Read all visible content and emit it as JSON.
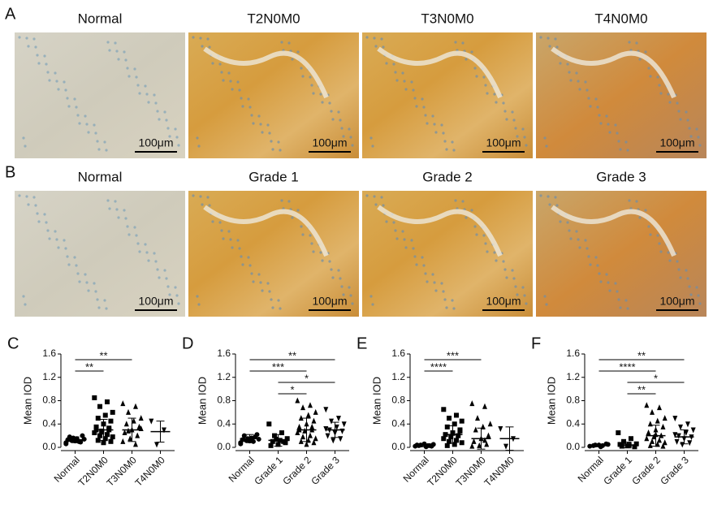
{
  "figure": {
    "rows": [
      {
        "label": "A",
        "panels": [
          {
            "title": "Normal",
            "scale_bar": "100μm"
          },
          {
            "title": "T2N0M0",
            "scale_bar": "100μm"
          },
          {
            "title": "T3N0M0",
            "scale_bar": "100μm"
          },
          {
            "title": "T4N0M0",
            "scale_bar": "100μm"
          }
        ]
      },
      {
        "label": "B",
        "panels": [
          {
            "title": "Normal",
            "scale_bar": "100μm"
          },
          {
            "title": "Grade 1",
            "scale_bar": "100μm"
          },
          {
            "title": "Grade 2",
            "scale_bar": "100μm"
          },
          {
            "title": "Grade 3",
            "scale_bar": "100μm"
          }
        ]
      }
    ]
  },
  "chart_data": [
    {
      "type": "dotplot",
      "panel_label": "C",
      "ylabel": "Mean IOD",
      "categories": [
        "Normal",
        "T2N0M0",
        "T3N0M0",
        "T4N0M0"
      ],
      "ylim": [
        0,
        1.6
      ],
      "yticks": [
        {
          "value": 0,
          "label": "0.0"
        },
        0.4,
        0.8,
        1.2,
        1.6
      ],
      "groups": [
        {
          "points": [
            0.08,
            0.1,
            0.12,
            0.14,
            0.15,
            0.18,
            0.2,
            0.11,
            0.13,
            0.09,
            0.16,
            0.06
          ],
          "mean": 0.13,
          "sd": 0.05
        },
        {
          "points": [
            0.85,
            0.78,
            0.7,
            0.6,
            0.55,
            0.5,
            0.45,
            0.4,
            0.35,
            0.3,
            0.28,
            0.25,
            0.22,
            0.2,
            0.18,
            0.15,
            0.12,
            0.1,
            0.08,
            0.3,
            0.33,
            0.26
          ],
          "mean": 0.3,
          "sd": 0.18
        },
        {
          "points": [
            0.75,
            0.7,
            0.6,
            0.5,
            0.45,
            0.4,
            0.35,
            0.3,
            0.25,
            0.2,
            0.15,
            0.1,
            0.05,
            0.28,
            0.32
          ],
          "mean": 0.3,
          "sd": 0.2
        },
        {
          "points": [
            0.45,
            0.3,
            0.05
          ],
          "mean": 0.27,
          "sd": 0.18
        }
      ],
      "comparisons": [
        {
          "from": "Normal",
          "to": "T3N0M0",
          "label": "**"
        },
        {
          "from": "Normal",
          "to": "T2N0M0",
          "label": "**"
        }
      ]
    },
    {
      "type": "dotplot",
      "panel_label": "D",
      "ylabel": "Mean IOD",
      "categories": [
        "Normal",
        "Grade 1",
        "Grade 2",
        "Grade 3"
      ],
      "ylim": [
        0,
        1.6
      ],
      "yticks": [
        {
          "value": 0,
          "label": "0.0"
        },
        0.4,
        0.8,
        1.2,
        1.6
      ],
      "groups": [
        {
          "points": [
            0.08,
            0.1,
            0.12,
            0.14,
            0.16,
            0.2,
            0.22,
            0.11,
            0.13,
            0.18,
            0.15,
            0.06
          ],
          "mean": 0.15,
          "sd": 0.07
        },
        {
          "points": [
            0.4,
            0.25,
            0.2,
            0.15,
            0.12,
            0.1,
            0.08,
            0.05,
            0.03,
            0.1,
            0.14
          ],
          "mean": 0.12,
          "sd": 0.1
        },
        {
          "points": [
            0.8,
            0.72,
            0.68,
            0.6,
            0.55,
            0.5,
            0.45,
            0.4,
            0.35,
            0.3,
            0.28,
            0.25,
            0.2,
            0.18,
            0.15,
            0.12,
            0.1,
            0.08,
            0.05,
            0.3,
            0.35
          ],
          "mean": 0.3,
          "sd": 0.2
        },
        {
          "points": [
            0.65,
            0.5,
            0.45,
            0.4,
            0.35,
            0.3,
            0.28,
            0.25,
            0.2,
            0.15,
            0.12,
            0.32
          ],
          "mean": 0.3,
          "sd": 0.13
        }
      ],
      "comparisons": [
        {
          "from": "Normal",
          "to": "Grade 3",
          "label": "**"
        },
        {
          "from": "Normal",
          "to": "Grade 2",
          "label": "***"
        },
        {
          "from": "Grade 1",
          "to": "Grade 3",
          "label": "*"
        },
        {
          "from": "Grade 1",
          "to": "Grade 2",
          "label": "*"
        }
      ]
    },
    {
      "type": "dotplot",
      "panel_label": "E",
      "ylabel": "Mean IOD",
      "categories": [
        "Normal",
        "T2N0M0",
        "T3N0M0",
        "T4N0M0"
      ],
      "ylim": [
        0,
        1.6
      ],
      "yticks": [
        {
          "value": 0,
          "label": "0.0"
        },
        0.4,
        0.8,
        1.2,
        1.6
      ],
      "groups": [
        {
          "points": [
            0.02,
            0.03,
            0.04,
            0.05,
            0.01,
            0.03,
            0.02,
            0.06,
            0.04,
            0.03
          ],
          "mean": 0.03,
          "sd": 0.02
        },
        {
          "points": [
            0.65,
            0.55,
            0.5,
            0.45,
            0.4,
            0.35,
            0.3,
            0.25,
            0.22,
            0.2,
            0.18,
            0.15,
            0.12,
            0.1,
            0.08,
            0.05,
            0.03,
            0.28,
            0.24
          ],
          "mean": 0.22,
          "sd": 0.15
        },
        {
          "points": [
            0.75,
            0.7,
            0.5,
            0.4,
            0.35,
            0.3,
            0.2,
            0.15,
            0.1,
            0.05,
            0.03,
            0.02,
            0.12
          ],
          "mean": 0.15,
          "sd": 0.18
        },
        {
          "points": [
            0.32,
            0.15,
            0.02
          ],
          "mean": 0.15,
          "sd": 0.2
        }
      ],
      "comparisons": [
        {
          "from": "Normal",
          "to": "T3N0M0",
          "label": "***"
        },
        {
          "from": "Normal",
          "to": "T2N0M0",
          "label": "****"
        }
      ]
    },
    {
      "type": "dotplot",
      "panel_label": "F",
      "ylabel": "Mean IOD",
      "categories": [
        "Normal",
        "Grade 1",
        "Grade 2",
        "Grade 3"
      ],
      "ylim": [
        0,
        1.6
      ],
      "yticks": [
        {
          "value": 0,
          "label": "0.0"
        },
        0.4,
        0.8,
        1.2,
        1.6
      ],
      "groups": [
        {
          "points": [
            0.02,
            0.03,
            0.04,
            0.05,
            0.01,
            0.03,
            0.06,
            0.04
          ],
          "mean": 0.03,
          "sd": 0.02
        },
        {
          "points": [
            0.25,
            0.15,
            0.1,
            0.06,
            0.04,
            0.02,
            0.01,
            0.03,
            0.05
          ],
          "mean": 0.04,
          "sd": 0.05
        },
        {
          "points": [
            0.72,
            0.68,
            0.6,
            0.5,
            0.45,
            0.4,
            0.35,
            0.3,
            0.25,
            0.2,
            0.18,
            0.15,
            0.12,
            0.1,
            0.08,
            0.05,
            0.03,
            0.02,
            0.22
          ],
          "mean": 0.2,
          "sd": 0.18
        },
        {
          "points": [
            0.5,
            0.4,
            0.35,
            0.3,
            0.25,
            0.2,
            0.18,
            0.15,
            0.1,
            0.08,
            0.05,
            0.22
          ],
          "mean": 0.18,
          "sd": 0.12
        }
      ],
      "comparisons": [
        {
          "from": "Normal",
          "to": "Grade 3",
          "label": "**"
        },
        {
          "from": "Normal",
          "to": "Grade 2",
          "label": "****"
        },
        {
          "from": "Grade 1",
          "to": "Grade 3",
          "label": "*"
        },
        {
          "from": "Grade 1",
          "to": "Grade 2",
          "label": "**"
        }
      ]
    }
  ]
}
